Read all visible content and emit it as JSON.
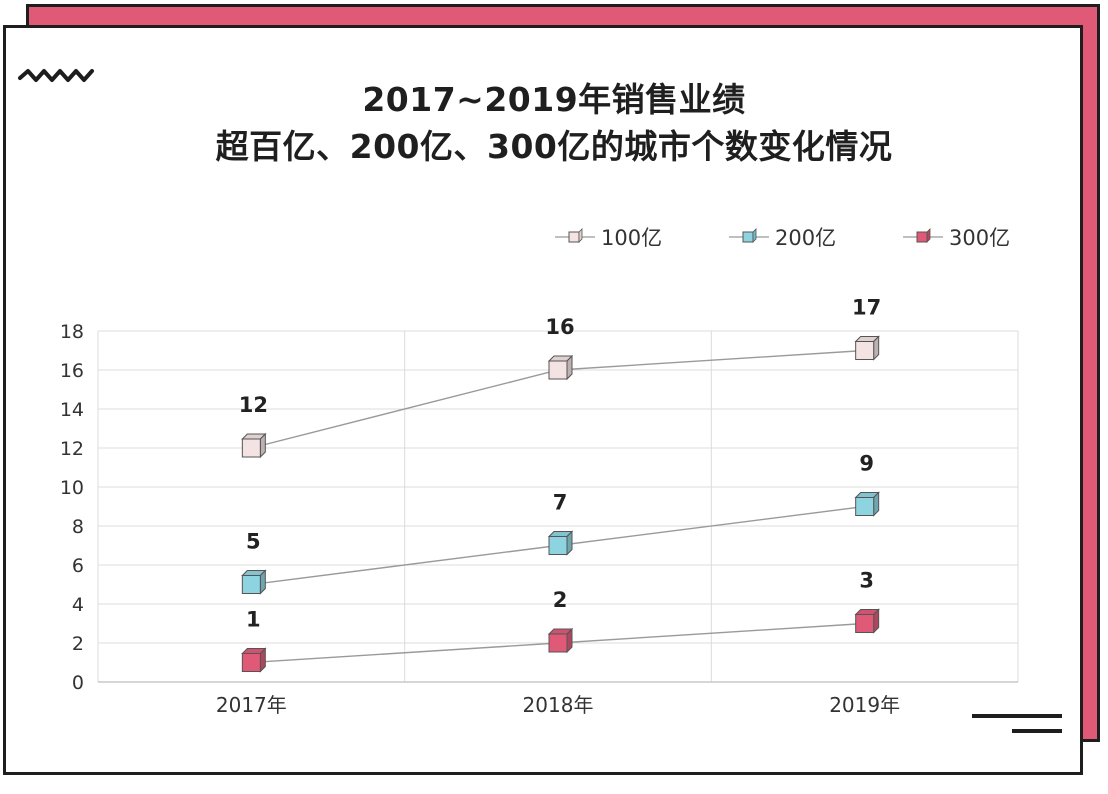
{
  "title": {
    "line1": "2017~2019年销售业绩",
    "line2": "超百亿、200亿、300亿的城市个数变化情况"
  },
  "colors": {
    "accent_back": "#e05a78",
    "series_100": "#f3e3e3",
    "series_200": "#8ed3e0",
    "series_300": "#e05a78"
  },
  "chart_data": {
    "type": "line",
    "categories": [
      "2017年",
      "2018年",
      "2019年"
    ],
    "series": [
      {
        "name": "100亿",
        "values": [
          12,
          16,
          17
        ],
        "color": "#f3e3e3"
      },
      {
        "name": "200亿",
        "values": [
          5,
          7,
          9
        ],
        "color": "#8ed3e0"
      },
      {
        "name": "300亿",
        "values": [
          1,
          2,
          3
        ],
        "color": "#e05a78"
      }
    ],
    "ylim": [
      0,
      18
    ],
    "yticks": [
      0,
      2,
      4,
      6,
      8,
      10,
      12,
      14,
      16,
      18
    ],
    "grid": true,
    "legend_position": "top-right",
    "data_labels": true
  }
}
